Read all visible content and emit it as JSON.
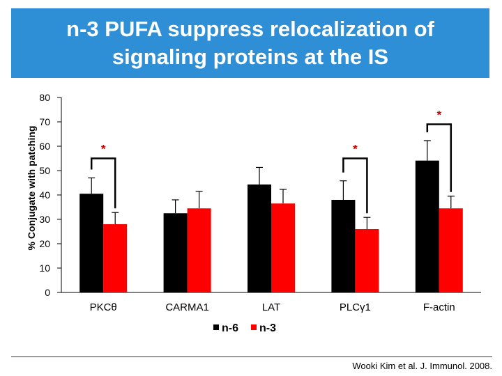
{
  "title": "n-3 PUFA suppress relocalization of\nsignaling proteins at the IS",
  "citation": "Wooki Kim et al. J. Immunol. 2008.",
  "chart_data": {
    "type": "bar",
    "title": "n-3 PUFA suppress relocalization of signaling proteins at the IS",
    "xlabel": "",
    "ylabel": "% Conjugate with patching",
    "ylim": [
      0,
      80
    ],
    "yticks": [
      0,
      10,
      20,
      30,
      40,
      50,
      60,
      70,
      80
    ],
    "categories": [
      "PKCθ",
      "CARMA1",
      "LAT",
      "PLCγ1",
      "F-actin"
    ],
    "series": [
      {
        "name": "n-6",
        "color": "#000000",
        "values": [
          40.5,
          32.5,
          44.3,
          38.0,
          54.1
        ],
        "errors": [
          6.5,
          5.5,
          7.0,
          7.8,
          8.2
        ]
      },
      {
        "name": "n-3",
        "color": "#ff0000",
        "values": [
          28.0,
          34.5,
          36.5,
          26.0,
          34.5
        ],
        "errors": [
          4.8,
          7.0,
          5.8,
          4.8,
          5.0
        ]
      }
    ],
    "significance": [
      {
        "category_index": 0,
        "label": "*",
        "bracket_top": 55
      },
      {
        "category_index": 3,
        "label": "*",
        "bracket_top": 55
      },
      {
        "category_index": 4,
        "label": "*",
        "bracket_top": 69
      }
    ],
    "legend_position": "bottom-center"
  }
}
